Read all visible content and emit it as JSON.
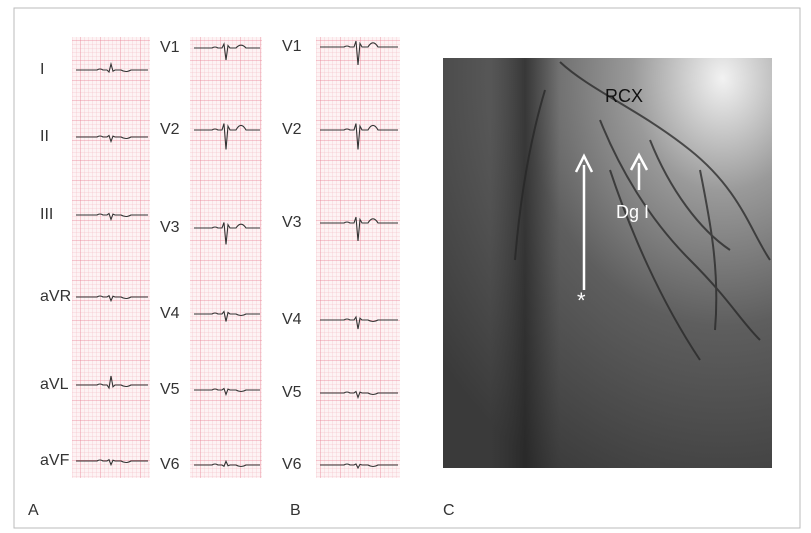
{
  "ecg_columns": [
    {
      "leads": [
        "I",
        "II",
        "III",
        "aVR",
        "aVL",
        "aVF"
      ]
    },
    {
      "leads": [
        "V1",
        "V2",
        "V3",
        "V4",
        "V5",
        "V6"
      ]
    },
    {
      "leads": [
        "V1",
        "V2",
        "V3",
        "V4",
        "V5",
        "V6"
      ]
    }
  ],
  "panel_labels": [
    "A",
    "B",
    "C"
  ],
  "angiogram": {
    "vessel_label": "RCX",
    "branch_label": "Dg I",
    "marker": "*"
  }
}
